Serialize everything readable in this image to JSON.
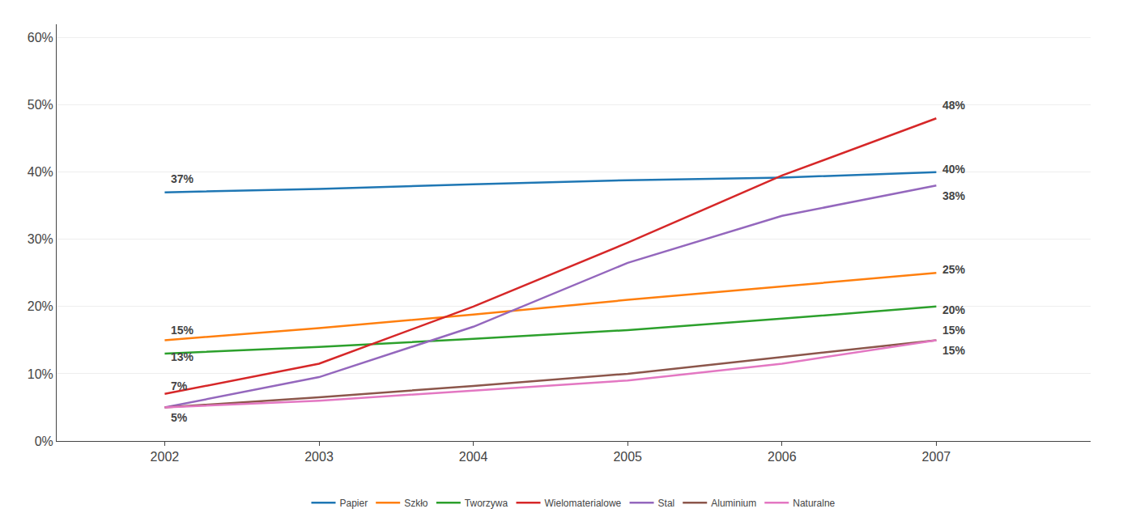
{
  "chart_data": {
    "type": "line",
    "x": [
      2002,
      2003,
      2004,
      2005,
      2006,
      2007
    ],
    "series": [
      {
        "name": "Papier",
        "values": [
          37,
          37.5,
          38.2,
          38.8,
          39.2,
          40
        ]
      },
      {
        "name": "Szkło",
        "values": [
          15,
          16.8,
          18.8,
          21.0,
          23.0,
          25
        ]
      },
      {
        "name": "Tworzywa",
        "values": [
          13,
          14.0,
          15.2,
          16.5,
          18.2,
          20
        ]
      },
      {
        "name": "Wielomaterialowe",
        "values": [
          7,
          11.5,
          20.0,
          29.5,
          39.5,
          48
        ]
      },
      {
        "name": "Stal",
        "values": [
          5,
          9.5,
          17.0,
          26.5,
          33.5,
          38
        ]
      },
      {
        "name": "Aluminium",
        "values": [
          5,
          6.5,
          8.2,
          10.0,
          12.5,
          15
        ]
      },
      {
        "name": "Naturalne",
        "values": [
          5,
          6.0,
          7.5,
          9.0,
          11.5,
          15
        ]
      }
    ],
    "xlim": [
      2001.3,
      2008
    ],
    "xticks": [
      2002,
      2003,
      2004,
      2005,
      2006,
      2007
    ],
    "ylim": [
      0,
      62
    ],
    "yticks": [
      {
        "value": 0,
        "label": "0%"
      },
      {
        "value": 10,
        "label": "10%"
      },
      {
        "value": 20,
        "label": "20%"
      },
      {
        "value": 30,
        "label": "30%"
      },
      {
        "value": 40,
        "label": "40%"
      },
      {
        "value": 50,
        "label": "50%"
      },
      {
        "value": 60,
        "label": "60%"
      }
    ],
    "grid": true,
    "legend": "bottom",
    "annotations": [
      {
        "text": "37%",
        "x": 2002,
        "y": 39
      },
      {
        "text": "15%",
        "x": 2002,
        "y": 16.5
      },
      {
        "text": "13%",
        "x": 2002,
        "y": 12.5
      },
      {
        "text": "7%",
        "x": 2002,
        "y": 8.2
      },
      {
        "text": "5%",
        "x": 2002,
        "y": 3.5
      },
      {
        "text": "48%",
        "x": 2007,
        "y": 50
      },
      {
        "text": "40%",
        "x": 2007,
        "y": 40.5
      },
      {
        "text": "38%",
        "x": 2007,
        "y": 36.5
      },
      {
        "text": "25%",
        "x": 2007,
        "y": 25.5
      },
      {
        "text": "20%",
        "x": 2007,
        "y": 19.5
      },
      {
        "text": "15%",
        "x": 2007,
        "y": 16.5
      },
      {
        "text": "15%",
        "x": 2007,
        "y": 13.5
      }
    ]
  }
}
